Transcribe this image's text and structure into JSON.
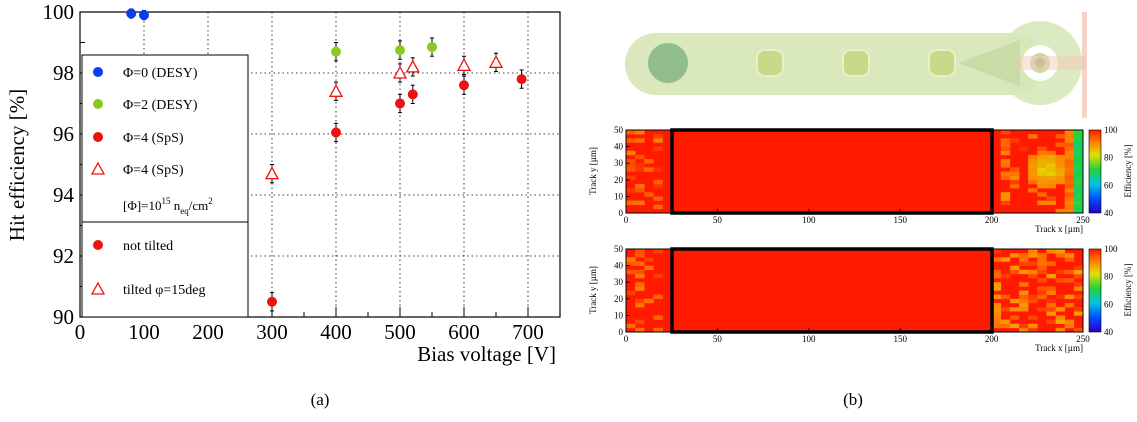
{
  "colors": {
    "desy_phi0": "#0a3cf0",
    "desy_phi2": "#8cc820",
    "sps_phi4": "#ee1111",
    "sensor_body": "#d6e6b6",
    "sensor_pad": "#c8d888",
    "sensor_dark_pad": "#7fb37f",
    "heatmap_red": "#ff1a00"
  },
  "panel_a": {
    "caption": "(a)",
    "chart_data": {
      "type": "scatter",
      "xlabel": "Bias voltage [V]",
      "ylabel": "Hit efficiency [%]",
      "xlim": [
        0,
        750
      ],
      "ylim": [
        90,
        100
      ],
      "xticks": [
        "0",
        "100",
        "200",
        "300",
        "400",
        "500",
        "600",
        "700"
      ],
      "yticks": [
        "90",
        "92",
        "94",
        "96",
        "98",
        "100"
      ],
      "grid": "dotted",
      "legend_position": "left",
      "series": [
        {
          "name": "Φ=0 (DESY)",
          "marker": "filled-circle",
          "color": "#0a3cf0",
          "x": [
            80,
            100
          ],
          "y": [
            99.95,
            99.9
          ],
          "err": [
            0.15,
            0.15
          ]
        },
        {
          "name": "Φ=2 (DESY)",
          "marker": "filled-circle",
          "color": "#8cc820",
          "x": [
            400,
            500,
            550
          ],
          "y": [
            98.7,
            98.75,
            98.85
          ],
          "err": [
            0.3,
            0.3,
            0.3
          ]
        },
        {
          "name": "Φ=4 (SpS)",
          "marker": "filled-circle",
          "color": "#ee1111",
          "x": [
            300,
            400,
            500,
            520,
            600,
            690
          ],
          "y": [
            90.5,
            96.05,
            97.0,
            97.3,
            97.6,
            97.8
          ],
          "err": [
            0.3,
            0.3,
            0.3,
            0.3,
            0.3,
            0.3
          ]
        },
        {
          "name": "Φ=4 (SpS)",
          "marker": "open-triangle",
          "color": "#ee1111",
          "x": [
            300,
            400,
            500,
            520,
            600,
            650
          ],
          "y": [
            94.7,
            97.4,
            98.0,
            98.2,
            98.25,
            98.35
          ],
          "err": [
            0.3,
            0.3,
            0.3,
            0.3,
            0.3,
            0.3
          ]
        }
      ],
      "legend": {
        "entries": [
          "Φ=0 (DESY)",
          "Φ=2 (DESY)",
          "Φ=4 (SpS)",
          "Φ=4 (SpS)"
        ],
        "fluence_prefix": "[Φ]=10",
        "fluence_exp": "15",
        "fluence_unit": "n",
        "fluence_sub": "eq",
        "fluence_tail": "/cm",
        "fluence_sq": "2",
        "style_entries": [
          "not tilted",
          "tilted φ=15deg"
        ]
      }
    }
  },
  "panel_b": {
    "caption": "(b)",
    "chart_data": [
      {
        "type": "heatmap",
        "xlabel": "Track x [µm]",
        "ylabel": "Track y [µm]",
        "zlabel": "Efficiency [%]",
        "xlim": [
          0,
          250
        ],
        "ylim": [
          0,
          50
        ],
        "zlim": [
          40,
          100
        ],
        "xticks": [
          "0",
          "50",
          "100",
          "150",
          "200",
          "250"
        ],
        "yticks": [
          "0",
          "10",
          "20",
          "30",
          "40",
          "50"
        ],
        "zticks": [
          "40",
          "60",
          "80",
          "100"
        ],
        "pixel_box": {
          "x": [
            25,
            200
          ],
          "y": [
            0,
            50
          ]
        },
        "features": "uniform ~100% efficiency with inefficient band at high x (>240 µm) and a lower-efficiency spot near x≈230 µm, y≈25 µm"
      },
      {
        "type": "heatmap",
        "xlabel": "Track x [µm]",
        "ylabel": "Track y [µm]",
        "zlabel": "Efficiency [%]",
        "xlim": [
          0,
          250
        ],
        "ylim": [
          0,
          50
        ],
        "zlim": [
          40,
          100
        ],
        "xticks": [
          "0",
          "50",
          "100",
          "150",
          "200",
          "250"
        ],
        "yticks": [
          "0",
          "10",
          "20",
          "30",
          "40",
          "50"
        ],
        "zticks": [
          "40",
          "60",
          "80",
          "100"
        ],
        "pixel_box": {
          "x": [
            25,
            200
          ],
          "y": [
            0,
            50
          ]
        },
        "features": "uniform ~100% efficiency with slightly noisy region at x>200 µm"
      }
    ]
  }
}
